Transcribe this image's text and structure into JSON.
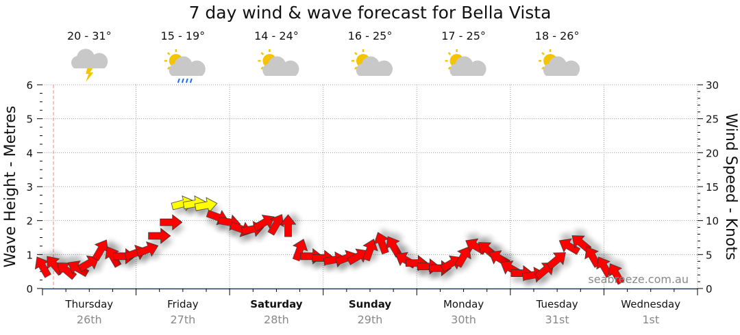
{
  "chart_data": {
    "type": "scatter",
    "title": "7 day wind & wave forecast for Bella Vista",
    "ylabel": "Wave Height - Metres",
    "y2label": "Wind Speed - Knots",
    "ylim": [
      0,
      6
    ],
    "y2lim": [
      0,
      30
    ],
    "yticks": [
      "0",
      "1",
      "2",
      "3",
      "4",
      "5",
      "6"
    ],
    "y2ticks": [
      "0",
      "5",
      "10",
      "15",
      "20",
      "25",
      "30"
    ],
    "grid": true,
    "watermark": "seabreeze.com.au",
    "colors": {
      "arrow": "#ff0000",
      "arrow_strong": "#ffff00",
      "now_line": "#ff8080",
      "grid": "#999999"
    },
    "days": [
      {
        "name": "Thursday",
        "date": "26th",
        "bold": false,
        "temp": "20 - 31°",
        "icon": "thunderstorm-icon"
      },
      {
        "name": "Friday",
        "date": "27th",
        "bold": false,
        "temp": "15 - 19°",
        "icon": "sun-cloud-rain-icon"
      },
      {
        "name": "Saturday",
        "date": "28th",
        "bold": true,
        "temp": "14 - 24°",
        "icon": "partly-cloudy-icon"
      },
      {
        "name": "Sunday",
        "date": "29th",
        "bold": true,
        "temp": "16 - 25°",
        "icon": "partly-cloudy-icon"
      },
      {
        "name": "Monday",
        "date": "30th",
        "bold": false,
        "temp": "17 - 25°",
        "icon": "partly-cloudy-icon"
      },
      {
        "name": "Tuesday",
        "date": "31st",
        "bold": false,
        "temp": "18 - 26°",
        "icon": "partly-cloudy-icon"
      },
      {
        "name": "Wednesday",
        "date": "1st",
        "bold": false
      }
    ],
    "series": [
      {
        "hour_step": 3,
        "wave_height_m": [
          0.65,
          0.7,
          0.55,
          0.6,
          0.75,
          1.15,
          0.95,
          0.95,
          1.05,
          1.15,
          1.55,
          1.95,
          2.5,
          2.5,
          2.45,
          2.1,
          1.95,
          1.75,
          1.75,
          1.95,
          1.9,
          1.85,
          1.15,
          0.95,
          0.9,
          0.85,
          0.9,
          0.95,
          1.15,
          1.35,
          1.25,
          0.85,
          0.75,
          0.65,
          0.6,
          0.75,
          0.95,
          1.25,
          1.15,
          0.9,
          0.6,
          0.45,
          0.4,
          0.55,
          0.85,
          1.25,
          1.35,
          0.95,
          0.65,
          0.45
        ],
        "arrow_heading_deg": [
          330,
          320,
          310,
          300,
          60,
          30,
          330,
          90,
          70,
          70,
          90,
          90,
          75,
          80,
          80,
          110,
          100,
          110,
          80,
          60,
          30,
          0,
          20,
          90,
          90,
          80,
          70,
          60,
          20,
          340,
          330,
          300,
          90,
          90,
          90,
          60,
          30,
          300,
          310,
          300,
          300,
          90,
          80,
          50,
          50,
          300,
          310,
          330,
          330,
          330
        ],
        "strong_wind": [
          false,
          false,
          false,
          false,
          false,
          false,
          false,
          false,
          false,
          false,
          false,
          false,
          true,
          true,
          true,
          false,
          false,
          false,
          false,
          false,
          false,
          false,
          false,
          false,
          false,
          false,
          false,
          false,
          false,
          false,
          false,
          false,
          false,
          false,
          false,
          false,
          false,
          false,
          false,
          false,
          false,
          false,
          false,
          false,
          false,
          false,
          false,
          false,
          false,
          false
        ]
      }
    ]
  }
}
